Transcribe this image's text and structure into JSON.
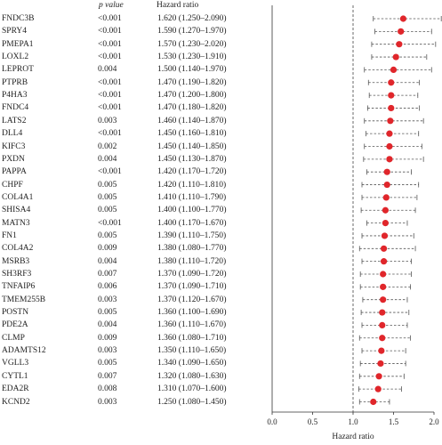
{
  "chart_data": {
    "type": "forest",
    "columns": {
      "gene": "",
      "p": "p value",
      "hr": "Hazard ratio"
    },
    "xlabel": "Hazard ratio",
    "xlim": [
      0.0,
      2.0
    ],
    "xticks": [
      "0.0",
      "0.5",
      "1.0",
      "1.5",
      "2.0"
    ],
    "reference_line": 1.0,
    "rows": [
      {
        "gene": "FNDC3B",
        "p": "<0.001",
        "hr_text": "1.620 (1.250–2.090)",
        "hr": 1.62,
        "lo": 1.25,
        "hi": 2.09
      },
      {
        "gene": "SPRY4",
        "p": "<0.001",
        "hr_text": "1.590 (1.270–1.970)",
        "hr": 1.59,
        "lo": 1.27,
        "hi": 1.97
      },
      {
        "gene": "PMEPA1",
        "p": "<0.001",
        "hr_text": "1.570 (1.230–2.020)",
        "hr": 1.57,
        "lo": 1.23,
        "hi": 2.02
      },
      {
        "gene": "LOXL2",
        "p": "<0.001",
        "hr_text": "1.530 (1.230–1.910)",
        "hr": 1.53,
        "lo": 1.23,
        "hi": 1.91
      },
      {
        "gene": "LEPROT",
        "p": "0.004",
        "hr_text": "1.500 (1.140–1.970)",
        "hr": 1.5,
        "lo": 1.14,
        "hi": 1.97
      },
      {
        "gene": "PTPRB",
        "p": "<0.001",
        "hr_text": "1.470 (1.190–1.820)",
        "hr": 1.47,
        "lo": 1.19,
        "hi": 1.82
      },
      {
        "gene": "P4HA3",
        "p": "<0.001",
        "hr_text": "1.470 (1.200–1.800)",
        "hr": 1.47,
        "lo": 1.2,
        "hi": 1.8
      },
      {
        "gene": "FNDC4",
        "p": "<0.001",
        "hr_text": "1.470 (1.180–1.820)",
        "hr": 1.47,
        "lo": 1.18,
        "hi": 1.82
      },
      {
        "gene": "LATS2",
        "p": "0.003",
        "hr_text": "1.460 (1.140–1.870)",
        "hr": 1.46,
        "lo": 1.14,
        "hi": 1.87
      },
      {
        "gene": "DLL4",
        "p": "<0.001",
        "hr_text": "1.450 (1.160–1.810)",
        "hr": 1.45,
        "lo": 1.16,
        "hi": 1.81
      },
      {
        "gene": "KIFC3",
        "p": "0.002",
        "hr_text": "1.450 (1.140–1.850)",
        "hr": 1.45,
        "lo": 1.14,
        "hi": 1.85
      },
      {
        "gene": "PXDN",
        "p": "0.004",
        "hr_text": "1.450 (1.130–1.870)",
        "hr": 1.45,
        "lo": 1.13,
        "hi": 1.87
      },
      {
        "gene": "PAPPA",
        "p": "<0.001",
        "hr_text": "1.420 (1.170–1.720)",
        "hr": 1.42,
        "lo": 1.17,
        "hi": 1.72
      },
      {
        "gene": "CHPF",
        "p": "0.005",
        "hr_text": "1.420 (1.110–1.810)",
        "hr": 1.42,
        "lo": 1.11,
        "hi": 1.81
      },
      {
        "gene": "COL4A1",
        "p": "0.005",
        "hr_text": "1.410 (1.110–1.790)",
        "hr": 1.41,
        "lo": 1.11,
        "hi": 1.79
      },
      {
        "gene": "SHISA4",
        "p": "0.005",
        "hr_text": "1.400 (1.100–1.770)",
        "hr": 1.4,
        "lo": 1.1,
        "hi": 1.77
      },
      {
        "gene": "MATN3",
        "p": "<0.001",
        "hr_text": "1.400 (1.170–1.670)",
        "hr": 1.4,
        "lo": 1.17,
        "hi": 1.67
      },
      {
        "gene": "FN1",
        "p": "0.005",
        "hr_text": "1.390 (1.110–1.750)",
        "hr": 1.39,
        "lo": 1.11,
        "hi": 1.75
      },
      {
        "gene": "COL4A2",
        "p": "0.009",
        "hr_text": "1.380 (1.080–1.770)",
        "hr": 1.38,
        "lo": 1.08,
        "hi": 1.77
      },
      {
        "gene": "MSRB3",
        "p": "0.004",
        "hr_text": "1.380 (1.110–1.720)",
        "hr": 1.38,
        "lo": 1.11,
        "hi": 1.72
      },
      {
        "gene": "SH3RF3",
        "p": "0.007",
        "hr_text": "1.370 (1.090–1.720)",
        "hr": 1.37,
        "lo": 1.09,
        "hi": 1.72
      },
      {
        "gene": "TNFAIP6",
        "p": "0.006",
        "hr_text": "1.370 (1.090–1.710)",
        "hr": 1.37,
        "lo": 1.09,
        "hi": 1.71
      },
      {
        "gene": "TMEM255B",
        "p": "0.003",
        "hr_text": "1.370 (1.120–1.670)",
        "hr": 1.37,
        "lo": 1.12,
        "hi": 1.67
      },
      {
        "gene": "POSTN",
        "p": "0.005",
        "hr_text": "1.360 (1.100–1.690)",
        "hr": 1.36,
        "lo": 1.1,
        "hi": 1.69
      },
      {
        "gene": "PDE2A",
        "p": "0.004",
        "hr_text": "1.360 (1.110–1.670)",
        "hr": 1.36,
        "lo": 1.11,
        "hi": 1.67
      },
      {
        "gene": "CLMP",
        "p": "0.009",
        "hr_text": "1.360 (1.080–1.710)",
        "hr": 1.36,
        "lo": 1.08,
        "hi": 1.71
      },
      {
        "gene": "ADAMTS12",
        "p": "0.003",
        "hr_text": "1.350 (1.110–1.650)",
        "hr": 1.35,
        "lo": 1.11,
        "hi": 1.65
      },
      {
        "gene": "VGLL3",
        "p": "0.005",
        "hr_text": "1.340 (1.090–1.650)",
        "hr": 1.34,
        "lo": 1.09,
        "hi": 1.65
      },
      {
        "gene": "CYTL1",
        "p": "0.007",
        "hr_text": "1.320 (1.080–1.630)",
        "hr": 1.32,
        "lo": 1.08,
        "hi": 1.63
      },
      {
        "gene": "EDA2R",
        "p": "0.008",
        "hr_text": "1.310 (1.070–1.600)",
        "hr": 1.31,
        "lo": 1.07,
        "hi": 1.6
      },
      {
        "gene": "KCND2",
        "p": "0.003",
        "hr_text": "1.250 (1.080–1.450)",
        "hr": 1.25,
        "lo": 1.08,
        "hi": 1.45
      }
    ]
  },
  "colors": {
    "point": "#e0262b",
    "whisker": "#555555",
    "axis": "#333333",
    "reference": "#444444"
  }
}
